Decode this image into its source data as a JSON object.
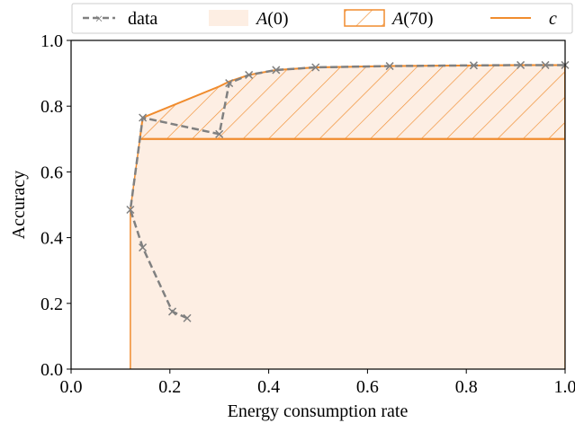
{
  "chart_data": {
    "type": "line",
    "xlabel": "Energy consumption rate",
    "ylabel": "Accuracy",
    "xlim": [
      0.0,
      1.0
    ],
    "ylim": [
      0.0,
      1.0
    ],
    "xticks": [
      "0.0",
      "0.2",
      "0.4",
      "0.6",
      "0.8",
      "1.0"
    ],
    "yticks": [
      "0.0",
      "0.2",
      "0.4",
      "0.6",
      "0.8",
      "1.0"
    ],
    "grid": false,
    "legend_position": "top",
    "legend": {
      "data": "data",
      "a0_prefix": "A",
      "a0_arg": "(0)",
      "a70_prefix": "A",
      "a70_arg": "(70)",
      "c": "c"
    },
    "colors": {
      "data_line": "#808080",
      "area_fill": "#fdeee3",
      "accent": "#f08c2e"
    },
    "series": [
      {
        "name": "data",
        "style": "dashed-with-x-markers",
        "x": [
          0.235,
          0.205,
          0.145,
          0.12,
          0.145,
          0.3,
          0.32,
          0.36,
          0.415,
          0.495,
          0.645,
          0.815,
          0.91,
          0.96,
          1.0
        ],
        "y": [
          0.155,
          0.175,
          0.37,
          0.485,
          0.765,
          0.715,
          0.87,
          0.895,
          0.91,
          0.918,
          0.922,
          0.924,
          0.925,
          0.925,
          0.925
        ]
      }
    ],
    "frontier": {
      "x": [
        0.12,
        0.145,
        0.3,
        0.32,
        0.36,
        0.415,
        0.495,
        0.645,
        0.815,
        0.91,
        0.96,
        1.0
      ],
      "y": [
        0.485,
        0.765,
        0.86,
        0.875,
        0.895,
        0.91,
        0.918,
        0.922,
        0.924,
        0.925,
        0.925,
        0.925
      ]
    },
    "c_level": 0.7,
    "area_x_min": 0.12,
    "area_x_max": 1.0
  }
}
